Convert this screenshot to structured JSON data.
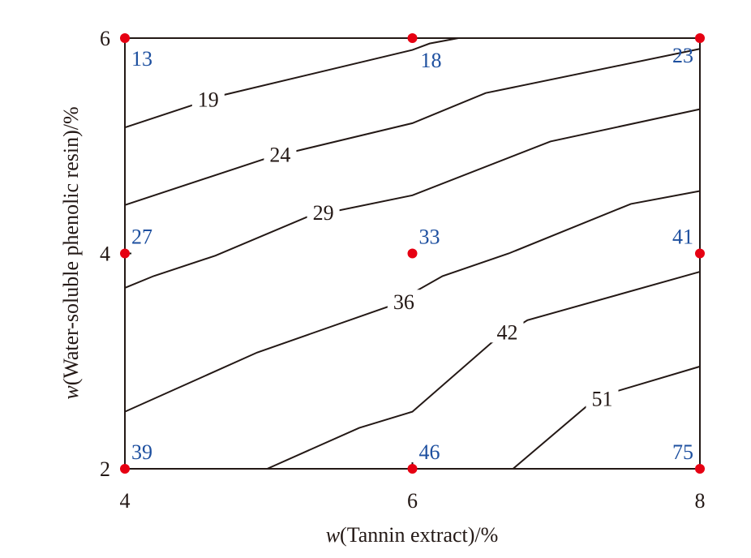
{
  "chart_data": {
    "type": "contour",
    "xlabel_italic": "w",
    "xlabel": "(Tannin extract)/%",
    "ylabel_italic": "w",
    "ylabel": "(Water-soluble phenolic resin)/%",
    "xlim": [
      4,
      8
    ],
    "ylim": [
      2,
      6
    ],
    "xticks": [
      4,
      6,
      8
    ],
    "yticks": [
      2,
      4,
      6
    ],
    "grid": false,
    "colors": {
      "line": "#231815",
      "point": "#e60012",
      "point_label": "#1d4f9f"
    },
    "contours": [
      {
        "level": "19",
        "points": [
          [
            4,
            5.17
          ],
          [
            4.68,
            5.47
          ],
          [
            6,
            5.89
          ],
          [
            6.12,
            5.95
          ],
          [
            6.32,
            6.0
          ]
        ],
        "label_at": [
          4.58,
          5.43
        ]
      },
      {
        "level": "24",
        "points": [
          [
            4,
            4.45
          ],
          [
            5,
            4.89
          ],
          [
            6,
            5.21
          ],
          [
            6.51,
            5.49
          ],
          [
            8,
            5.9
          ]
        ],
        "label_at": [
          5.08,
          4.92
        ]
      },
      {
        "level": "29",
        "points": [
          [
            4,
            3.68
          ],
          [
            4.2,
            3.79
          ],
          [
            4.63,
            3.98
          ],
          [
            5.27,
            4.34
          ],
          [
            6,
            4.54
          ],
          [
            6.96,
            5.04
          ],
          [
            8,
            5.34
          ]
        ],
        "label_at": [
          5.38,
          4.38
        ]
      },
      {
        "level": "36",
        "points": [
          [
            4,
            2.53
          ],
          [
            4.92,
            3.08
          ],
          [
            5.84,
            3.51
          ],
          [
            6.21,
            3.79
          ],
          [
            6.67,
            4.0
          ],
          [
            7.52,
            4.46
          ],
          [
            8,
            4.58
          ]
        ],
        "label_at": [
          5.94,
          3.55
        ]
      },
      {
        "level": "42",
        "points": [
          [
            4.99,
            2.0
          ],
          [
            5.63,
            2.38
          ],
          [
            6,
            2.53
          ],
          [
            6.55,
            3.17
          ],
          [
            6.8,
            3.38
          ],
          [
            8,
            3.83
          ]
        ],
        "label_at": [
          6.66,
          3.27
        ]
      },
      {
        "level": "51",
        "points": [
          [
            6.7,
            2.0
          ],
          [
            7.22,
            2.59
          ],
          [
            7.42,
            2.72
          ],
          [
            8,
            2.95
          ]
        ],
        "label_at": [
          7.32,
          2.65
        ]
      }
    ],
    "design_points": [
      {
        "x": 4,
        "y": 6,
        "value": "13"
      },
      {
        "x": 6,
        "y": 6,
        "value": "18"
      },
      {
        "x": 8,
        "y": 6,
        "value": "23"
      },
      {
        "x": 4,
        "y": 4,
        "value": "27"
      },
      {
        "x": 6,
        "y": 4,
        "value": "33"
      },
      {
        "x": 8,
        "y": 4,
        "value": "41"
      },
      {
        "x": 4,
        "y": 2,
        "value": "39"
      },
      {
        "x": 6,
        "y": 2,
        "value": "46"
      },
      {
        "x": 8,
        "y": 2,
        "value": "75"
      }
    ]
  }
}
